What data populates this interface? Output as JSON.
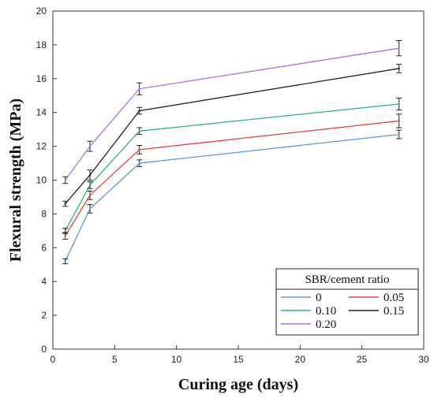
{
  "chart_data": {
    "type": "line",
    "xlabel": "Curing age (days)",
    "ylabel": "Flexural strength (MPa)",
    "xlim": [
      0,
      30
    ],
    "ylim": [
      0,
      20
    ],
    "xticks": [
      0,
      5,
      10,
      15,
      20,
      25,
      30
    ],
    "yticks": [
      0,
      2,
      4,
      6,
      8,
      10,
      12,
      14,
      16,
      18,
      20
    ],
    "grid": false,
    "legend": {
      "title": "SBR/cement ratio",
      "placement": "bottom-right"
    },
    "x": [
      1,
      3,
      7,
      28
    ],
    "series": [
      {
        "name": "0",
        "color": "#5B9BD5",
        "values": [
          5.2,
          8.3,
          11.0,
          12.7
        ],
        "errors": [
          0.15,
          0.25,
          0.2,
          0.25
        ]
      },
      {
        "name": "0.05",
        "color": "#E8433B",
        "values": [
          6.7,
          9.1,
          11.8,
          13.5
        ],
        "errors": [
          0.2,
          0.25,
          0.25,
          0.4
        ]
      },
      {
        "name": "0.10",
        "color": "#2CB56B",
        "values": [
          7.0,
          9.7,
          12.9,
          14.5
        ],
        "errors": [
          0.15,
          0.2,
          0.2,
          0.35
        ]
      },
      {
        "name": "0.15",
        "color": "#222222",
        "values": [
          8.6,
          10.3,
          14.1,
          16.6
        ],
        "errors": [
          0.15,
          0.3,
          0.2,
          0.25
        ]
      },
      {
        "name": "0.20",
        "color": "#B072D6",
        "values": [
          10.0,
          12.0,
          15.4,
          17.8
        ],
        "errors": [
          0.2,
          0.3,
          0.35,
          0.45
        ]
      }
    ]
  }
}
